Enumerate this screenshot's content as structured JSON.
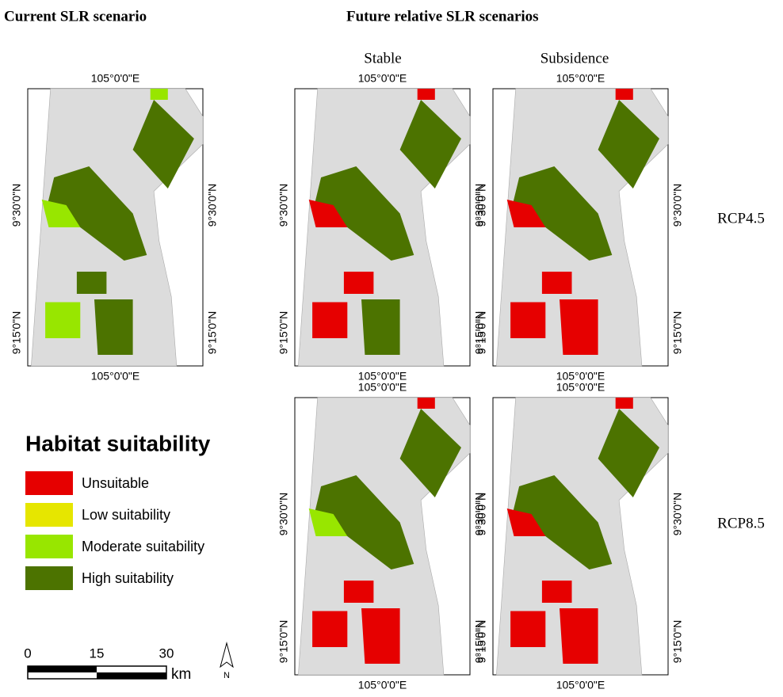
{
  "headers": {
    "current": "Current SLR scenario",
    "future": "Future relative SLR scenarios"
  },
  "columns": [
    "Stable",
    "Subsidence"
  ],
  "rows": [
    "RCP4.5",
    "RCP8.5"
  ],
  "maps": [
    {
      "lon_top": "105°0'0\"E",
      "lon_bottom": "105°0'0\"E",
      "lat_left": [
        "9°30'0\"N",
        "9°15'0\"N"
      ],
      "lat_right": [
        "9°30'0\"N",
        "9°15'0\"N"
      ]
    },
    {
      "lon_top": "105°0'0\"E",
      "lon_bottom": "105°0'0\"E",
      "lat_left": [
        "9°30'0\"N",
        "9°15'0\"N"
      ],
      "lat_right": [
        "9°30'0\"N",
        "9°15'0\"N"
      ]
    },
    {
      "lon_top": "105°0'0\"E",
      "lon_bottom": "105°0'0\"E",
      "lat_left": [
        "9°30'0\"N",
        "9°15'0\"N"
      ],
      "lat_right": [
        "9°30'0\"N",
        "9°15'0\"N"
      ]
    },
    {
      "lon_top": "105°0'0\"E",
      "lon_bottom": "105°0'0\"E",
      "lat_left": [
        "9°30'0\"N",
        "9°15'0\"N"
      ],
      "lat_right": [
        "9°30'0\"N",
        "9°15'0\"N"
      ]
    },
    {
      "lon_top": "105°0'0\"E",
      "lon_bottom": "105°0'0\"E",
      "lat_left": [
        "9°30'0\"N",
        "9°15'0\"N"
      ],
      "lat_right": [
        "9°30'0\"N",
        "9°15'0\"N"
      ]
    }
  ],
  "legend": {
    "title": "Habitat suitability",
    "items": [
      {
        "label": "Unsuitable",
        "color": "#e60000"
      },
      {
        "label": "Low suitability",
        "color": "#e6e600"
      },
      {
        "label": "Moderate suitability",
        "color": "#98e600"
      },
      {
        "label": "High suitability",
        "color": "#4c7300"
      }
    ]
  },
  "scale_bar": {
    "ticks": [
      "0",
      "15",
      "30"
    ],
    "unit": "km"
  },
  "north": "N"
}
